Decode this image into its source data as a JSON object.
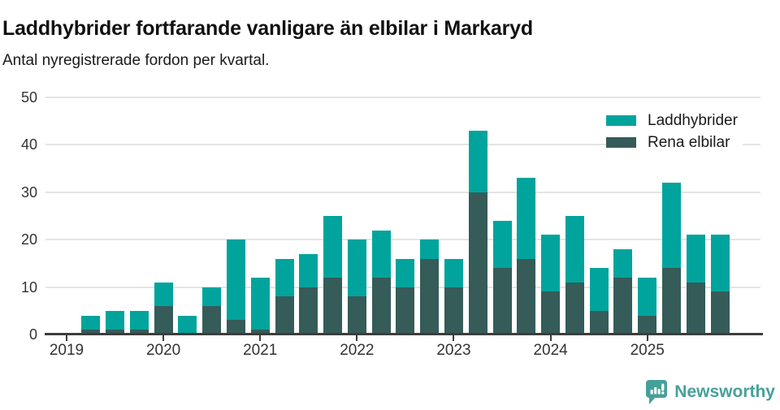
{
  "header": {
    "title": "Laddhybrider fortfarande vanligare än elbilar i Markaryd",
    "subtitle": "Antal nyregistrerade fordon per kvartal."
  },
  "chart_data": {
    "type": "bar",
    "stacked": true,
    "stack_order_bottom_to_top": [
      "Rena elbilar",
      "Laddhybrider"
    ],
    "title": "Laddhybrider fortfarande vanligare än elbilar i Markaryd",
    "subtitle": "Antal nyregistrerade fordon per kvartal.",
    "x": [
      "2019-Q1",
      "2019-Q2",
      "2019-Q3",
      "2019-Q4",
      "2020-Q1",
      "2020-Q2",
      "2020-Q3",
      "2020-Q4",
      "2021-Q1",
      "2021-Q2",
      "2021-Q3",
      "2021-Q4",
      "2022-Q1",
      "2022-Q2",
      "2022-Q3",
      "2022-Q4",
      "2023-Q1",
      "2023-Q2",
      "2023-Q3",
      "2023-Q4",
      "2024-Q1",
      "2024-Q2",
      "2024-Q3",
      "2024-Q4",
      "2025-Q1",
      "2025-Q2",
      "2025-Q3",
      "2025-Q4"
    ],
    "series": [
      {
        "name": "Laddhybrider",
        "color": "#00a49c",
        "values": [
          0,
          3,
          4,
          4,
          5,
          4,
          4,
          17,
          11,
          8,
          7,
          13,
          12,
          10,
          6,
          4,
          6,
          13,
          10,
          17,
          12,
          14,
          9,
          6,
          8,
          18,
          10,
          12
        ]
      },
      {
        "name": "Rena elbilar",
        "color": "#355c58",
        "values": [
          0,
          1,
          1,
          1,
          6,
          0,
          6,
          3,
          1,
          8,
          10,
          12,
          8,
          12,
          10,
          16,
          10,
          30,
          14,
          16,
          9,
          11,
          5,
          12,
          4,
          14,
          11,
          9
        ]
      }
    ],
    "stacked_totals": [
      0,
      4,
      5,
      5,
      11,
      4,
      10,
      20,
      12,
      16,
      17,
      25,
      20,
      22,
      16,
      20,
      16,
      43,
      24,
      33,
      21,
      25,
      14,
      18,
      12,
      32,
      21,
      21
    ],
    "x_tick_labels": [
      "2019",
      "2020",
      "2021",
      "2022",
      "2023",
      "2024",
      "2025"
    ],
    "y_ticks": [
      0,
      10,
      20,
      30,
      40,
      50
    ],
    "ylim": [
      0,
      50
    ],
    "xlabel": "",
    "ylabel": "",
    "grid": true,
    "legend_position": "top-right"
  },
  "legend": {
    "items": [
      {
        "label": "Laddhybrider",
        "color": "#00a49c"
      },
      {
        "label": "Rena elbilar",
        "color": "#355c58"
      }
    ]
  },
  "footer": {
    "brand": "Newsworthy",
    "brand_color": "#46a09a",
    "logo_icon": "bar-chart-speech-bubble-icon"
  },
  "colors": {
    "laddhybrider": "#00a49c",
    "rena_elbilar": "#355c58",
    "axis": "#3d3d3d",
    "gridline": "#e4e4e4",
    "brand": "#46a09a"
  }
}
